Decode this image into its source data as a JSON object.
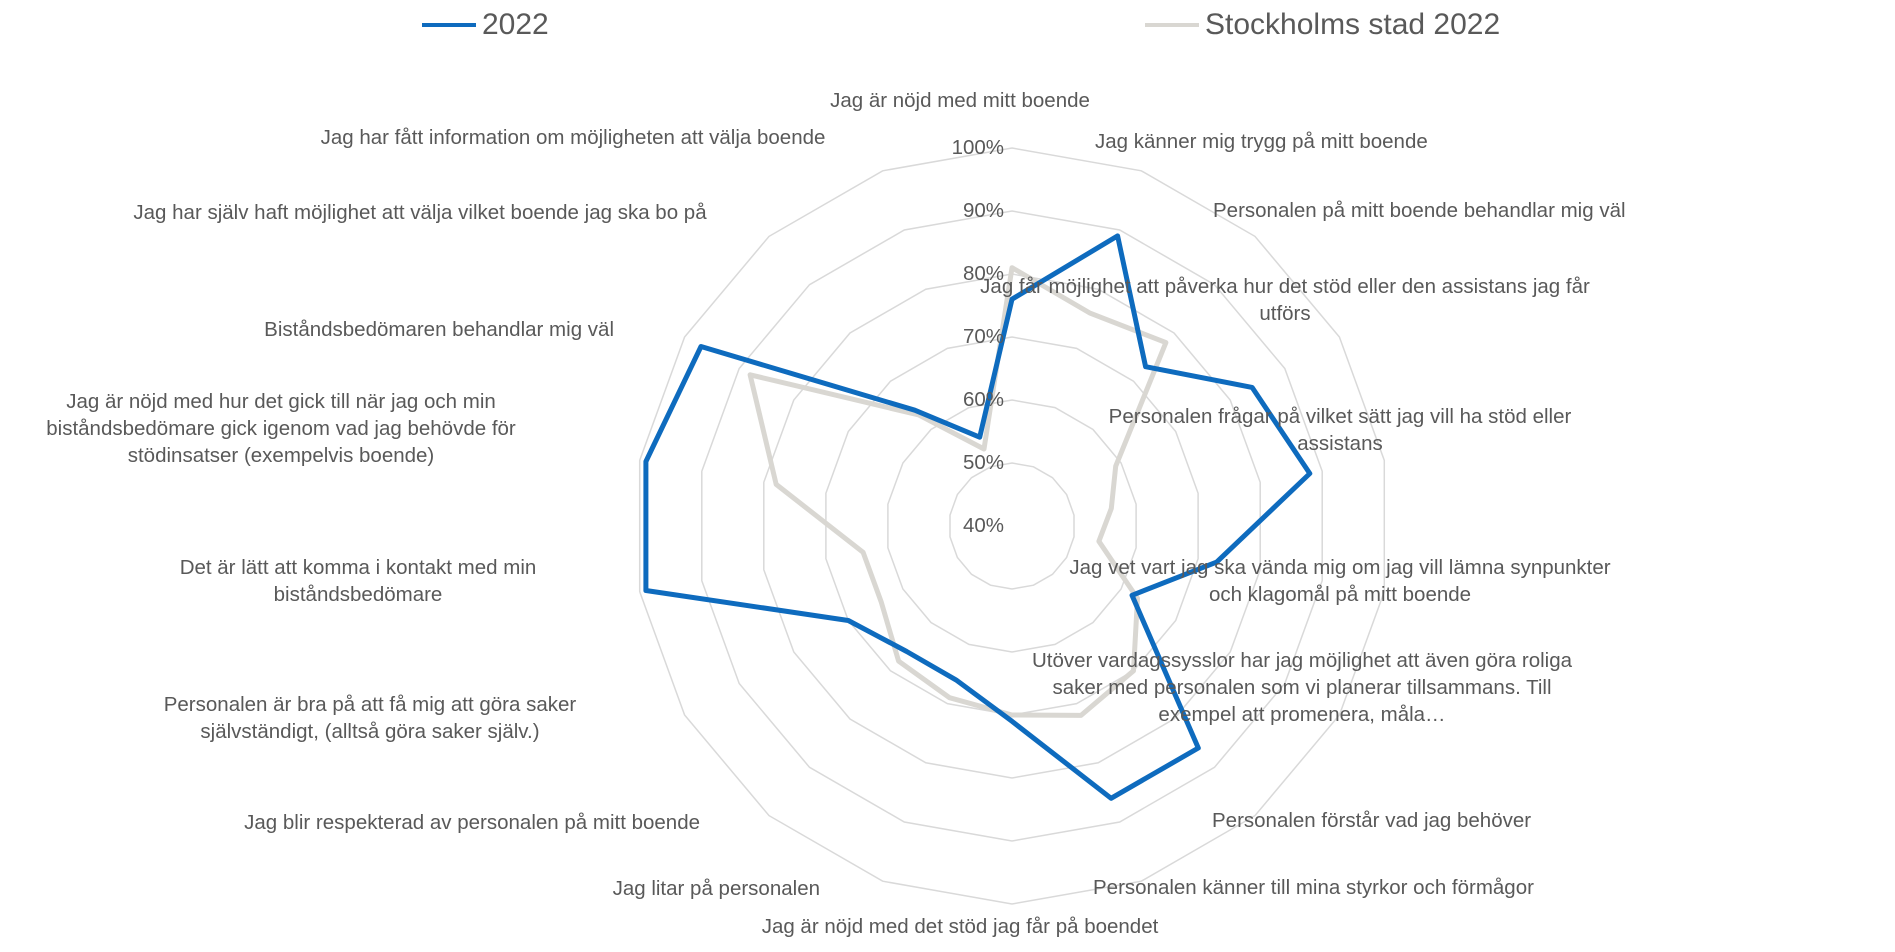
{
  "chart_data": {
    "type": "radar",
    "title": "",
    "ylim": [
      0.4,
      1.0
    ],
    "ticks": [
      "40%",
      "50%",
      "60%",
      "70%",
      "80%",
      "90%",
      "100%"
    ],
    "grid": true,
    "legend_position": "top",
    "categories": [
      "Jag är nöjd med mitt boende",
      "Jag känner mig trygg på mitt boende",
      "Personalen på mitt boende behandlar mig väl",
      "Jag får möjlighet att påverka hur det stöd eller den assistans jag får utförs",
      "Personalen frågar på vilket sätt jag vill ha stöd eller assistans",
      "Jag vet vart jag ska vända mig om jag vill lämna synpunkter och klagomål på mitt boende",
      "Utöver vardagssysslor har jag möjlighet att även göra roliga saker med personalen som vi planerar tillsammans. Till exempel att promenera, måla…",
      "Personalen förstår vad jag behöver",
      "Personalen känner till mina styrkor och förmågor",
      "Jag är nöjd med det stöd jag får på boendet",
      "Jag litar på personalen",
      "Jag blir respekterad av personalen på mitt boende",
      "Personalen är bra på att få mig att göra saker självständigt, (alltså göra saker själv.)",
      "Det är lätt att komma i kontakt med min biståndsbedömare",
      "Jag är nöjd med hur det gick till när jag och min biståndsbedömare gick igenom vad jag behövde för stödinsatser (exempelvis boende)",
      "Biståndsbedömaren behandlar mig väl",
      "Jag har själv haft möjlighet att välja vilket boende jag ska bo på",
      "Jag har fått information om möjligheten att välja boende"
    ],
    "series": [
      {
        "name": "2022",
        "color": "#0E6BBE",
        "values": [
          0.76,
          0.89,
          0.73,
          0.84,
          0.88,
          0.73,
          0.62,
          0.86,
          0.86,
          0.71,
          0.66,
          0.66,
          0.7,
          0.99,
          0.99,
          0.97,
          0.64,
          0.55
        ]
      },
      {
        "name": "Stockholms stad 2022",
        "color": "#D9D7D2",
        "values": [
          0.81,
          0.76,
          0.78,
          0.59,
          0.56,
          0.54,
          0.63,
          0.7,
          0.72,
          0.7,
          0.69,
          0.68,
          0.64,
          0.64,
          0.78,
          0.88,
          0.63,
          0.53
        ]
      }
    ]
  }
}
